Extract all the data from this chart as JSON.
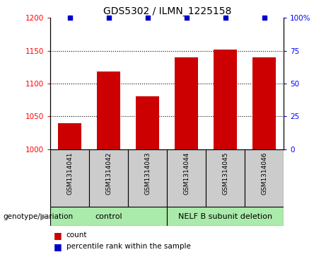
{
  "title": "GDS5302 / ILMN_1225158",
  "samples": [
    "GSM1314041",
    "GSM1314042",
    "GSM1314043",
    "GSM1314044",
    "GSM1314045",
    "GSM1314046"
  ],
  "counts": [
    1040,
    1118,
    1080,
    1140,
    1152,
    1140
  ],
  "percentiles": [
    100,
    100,
    100,
    100,
    100,
    100
  ],
  "ylim_left": [
    1000,
    1200
  ],
  "ylim_right": [
    0,
    100
  ],
  "yticks_left": [
    1000,
    1050,
    1100,
    1150,
    1200
  ],
  "yticks_right": [
    0,
    25,
    50,
    75,
    100
  ],
  "bar_color": "#cc0000",
  "dot_color": "#0000cc",
  "groups": [
    {
      "label": "control",
      "indices": [
        0,
        1,
        2
      ],
      "color": "#aaeaaa"
    },
    {
      "label": "NELF B subunit deletion",
      "indices": [
        3,
        4,
        5
      ],
      "color": "#aaeaaa"
    }
  ],
  "group_label_prefix": "genotype/variation",
  "legend_items": [
    {
      "color": "#cc0000",
      "label": "count"
    },
    {
      "color": "#0000cc",
      "label": "percentile rank within the sample"
    }
  ],
  "background_color": "#ffffff",
  "plot_bg_color": "#ffffff",
  "sample_box_color": "#cccccc",
  "dotted_line_color": "#000000",
  "bar_width": 0.6
}
